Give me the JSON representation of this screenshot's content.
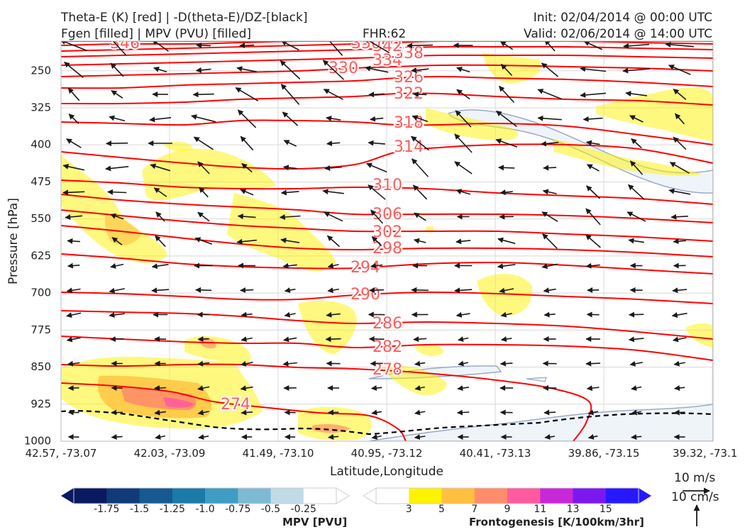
{
  "header": {
    "title_left_1": "Theta-E (K) [red] | -D(theta-E)/DZ-[black]",
    "title_left_2": "Fgen [filled] | MPV (PVU) [filled]",
    "fhr": "FHR:62",
    "init": "Init: 02/04/2014 @ 00:00 UTC",
    "valid": "Valid: 02/06/2014 @ 14:00 UTC"
  },
  "colors": {
    "theta_e": "#ff0000",
    "theta_e_label": "#ff5a5a",
    "barbs": "#1a1a1a",
    "mpv_outline": "#9aaac8",
    "mpv_fill": "#eef4f8"
  },
  "chart_data": {
    "type": "cross-section",
    "xlabel": "Latitude,Longitude",
    "ylabel": "Pressure [hPa]",
    "x_ticks": [
      "42.57, -73.07",
      "42.03, -73.09",
      "41.49, -73.10",
      "40.95, -73.12",
      "40.41, -73.13",
      "39.86, -73.15",
      "39.32, -73.1"
    ],
    "y_ticks": [
      250,
      325,
      400,
      475,
      550,
      625,
      700,
      775,
      850,
      925,
      1000
    ],
    "ylim": [
      1000,
      190
    ],
    "grid": true,
    "theta_e_contours": [
      {
        "value": 274,
        "label": "274"
      },
      {
        "value": 278,
        "label": "278"
      },
      {
        "value": 282,
        "label": "282"
      },
      {
        "value": 286,
        "label": "286"
      },
      {
        "value": 290,
        "label": "290"
      },
      {
        "value": 294,
        "label": "294"
      },
      {
        "value": 298,
        "label": "298"
      },
      {
        "value": 302,
        "label": "302"
      },
      {
        "value": 306,
        "label": "306"
      },
      {
        "value": 310,
        "label": "310"
      },
      {
        "value": 314,
        "label": "314"
      },
      {
        "value": 318,
        "label": "318"
      },
      {
        "value": 322,
        "label": "322"
      },
      {
        "value": 326,
        "label": "326"
      },
      {
        "value": 330,
        "label": "330"
      },
      {
        "value": 334,
        "label": "334"
      },
      {
        "value": 338,
        "label": "338"
      },
      {
        "value": 342,
        "label": "342"
      },
      {
        "value": 346,
        "label": "346"
      },
      {
        "value": 350,
        "label": "350"
      }
    ],
    "mpv_colorbar": {
      "label": "MPV [PVU]",
      "ticks": [
        "-1.75",
        "-1.5",
        "-1.25",
        "-1.0",
        "-0.75",
        "-0.5",
        "-0.25"
      ],
      "colors": [
        "#0a1a60",
        "#103a78",
        "#155a90",
        "#1a7aa8",
        "#3d9dc2",
        "#7ebad4",
        "#c0dbe6",
        "#ffffff"
      ]
    },
    "fgen_colorbar": {
      "label": "Frontogenesis [K/100km/3hr]",
      "ticks": [
        "3",
        "5",
        "7",
        "9",
        "11",
        "13",
        "15"
      ],
      "colors": [
        "#ffffff",
        "#fff200",
        "#ffc040",
        "#ff8c6a",
        "#ff5aa0",
        "#c828d8",
        "#7b18f0",
        "#2818ff"
      ]
    },
    "reference_vectors": {
      "wind": "10 m/s",
      "vertical": "10 cm/s"
    }
  }
}
